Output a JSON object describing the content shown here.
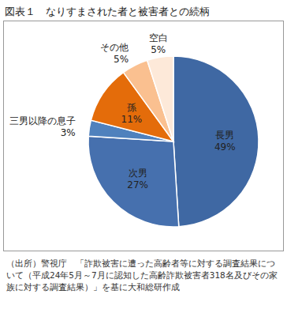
{
  "chart_data": {
    "type": "pie",
    "title": "図表１　なりすまされた者と被害者との続柄",
    "categories": [
      "長男",
      "次男",
      "三男以降の息子",
      "孫",
      "その他",
      "空白"
    ],
    "values": [
      49,
      27,
      3,
      11,
      5,
      5
    ],
    "value_labels": [
      "49%",
      "27%",
      "3%",
      "11%",
      "5%",
      "5%"
    ],
    "colors": [
      "#3F68A3",
      "#4670AE",
      "#4F81BD",
      "#E46C0A",
      "#FAC090",
      "#FDE9D9"
    ],
    "data_labels": true,
    "caption": "（出所）警視庁　「詐欺被害に遭った高齢者等に対する調査結果について（平成24年5月～7月に認知した高齢詐欺被害者318名及びその家族に対する調査結果）」を基に大和総研作成"
  }
}
